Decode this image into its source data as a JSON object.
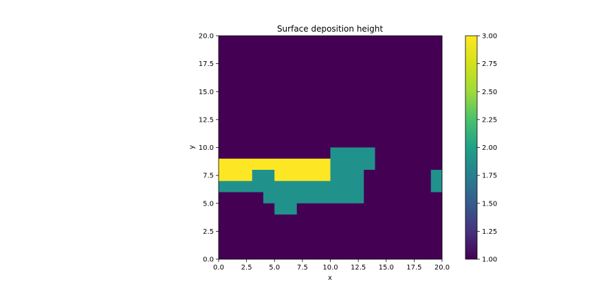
{
  "chart_data": {
    "type": "heatmap",
    "title": "Surface deposition height",
    "xlabel": "x",
    "ylabel": "y",
    "xlim": [
      0,
      20
    ],
    "ylim": [
      0,
      20
    ],
    "xticks": [
      "0.0",
      "2.5",
      "5.0",
      "7.5",
      "10.0",
      "12.5",
      "15.0",
      "17.5",
      "20.0"
    ],
    "yticks": [
      "0.0",
      "2.5",
      "5.0",
      "7.5",
      "10.0",
      "12.5",
      "15.0",
      "17.5",
      "20.0"
    ],
    "colormap": "viridis",
    "colorbar": {
      "vmin": 1.0,
      "vmax": 3.0,
      "ticks": [
        "1.00",
        "1.25",
        "1.50",
        "1.75",
        "2.00",
        "2.25",
        "2.50",
        "2.75",
        "3.00"
      ]
    },
    "grid_shape": [
      20,
      20
    ],
    "row_order": "top_to_bottom",
    "background_value": 1,
    "cells_rows": [
      {
        "y": 9,
        "spans": [
          {
            "x0": 10,
            "x1": 14,
            "value": 2
          }
        ]
      },
      {
        "y": 8,
        "spans": [
          {
            "x0": 0,
            "x1": 10,
            "value": 3
          },
          {
            "x0": 10,
            "x1": 14,
            "value": 2
          }
        ]
      },
      {
        "y": 7,
        "spans": [
          {
            "x0": 0,
            "x1": 3,
            "value": 3
          },
          {
            "x0": 3,
            "x1": 5,
            "value": 2
          },
          {
            "x0": 5,
            "x1": 10,
            "value": 3
          },
          {
            "x0": 10,
            "x1": 13,
            "value": 2
          },
          {
            "x0": 19,
            "x1": 20,
            "value": 2
          }
        ]
      },
      {
        "y": 6,
        "spans": [
          {
            "x0": 0,
            "x1": 13,
            "value": 2
          },
          {
            "x0": 19,
            "x1": 20,
            "value": 2
          }
        ]
      },
      {
        "y": 5,
        "spans": [
          {
            "x0": 4,
            "x1": 13,
            "value": 2
          }
        ]
      },
      {
        "y": 4,
        "spans": [
          {
            "x0": 5,
            "x1": 7,
            "value": 2
          }
        ]
      }
    ],
    "colors": {
      "1": "#440154",
      "2": "#21918c",
      "3": "#fde725"
    }
  }
}
